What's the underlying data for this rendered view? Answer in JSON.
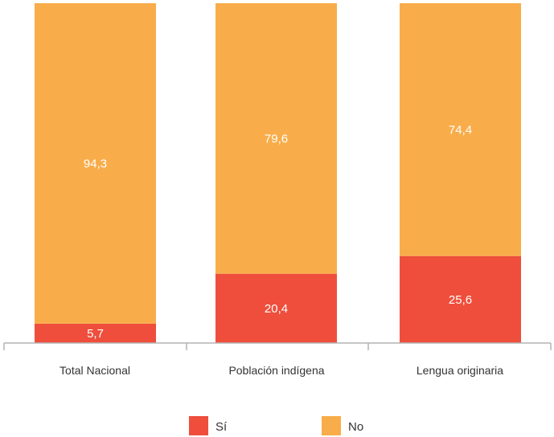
{
  "chart_data": {
    "type": "bar",
    "stacked": true,
    "categories": [
      "Total Nacional",
      "Población indígena",
      "Lengua originaria"
    ],
    "series": [
      {
        "name": "Sí",
        "values": [
          5.7,
          20.4,
          25.6
        ],
        "labels": [
          "5,7",
          "20,4",
          "25,6"
        ]
      },
      {
        "name": "No",
        "values": [
          94.3,
          79.6,
          74.4
        ],
        "labels": [
          "94,3",
          "79,6",
          "74,4"
        ]
      }
    ],
    "ylim": [
      0,
      100
    ],
    "legend_position": "bottom",
    "grid": false
  },
  "colors": {
    "si": "#ef4e3c",
    "no": "#f8ad4a",
    "axis": "#b3b3b3"
  }
}
